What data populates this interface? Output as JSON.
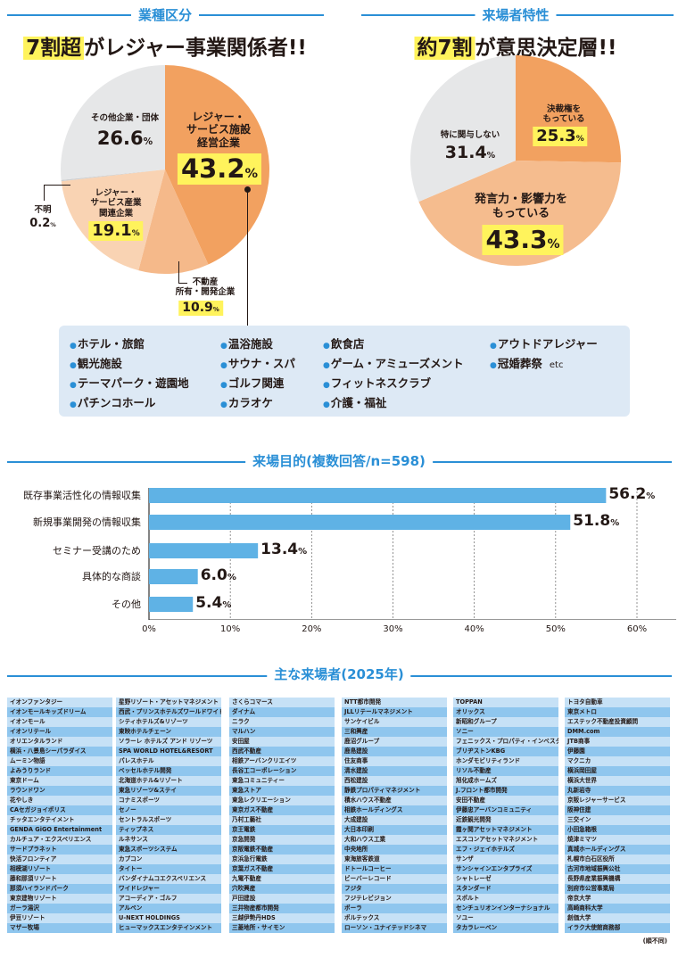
{
  "section1": {
    "title": "業種区分",
    "headline_highlight": "7割超",
    "headline_rest": "がレジャー事業関係者!!"
  },
  "section2": {
    "title": "来場者特性",
    "headline_highlight": "約7割",
    "headline_rest": "が意思決定層!!"
  },
  "legend": {
    "items": [
      "ホテル・旅館",
      "観光施設",
      "テーマパーク・遊園地",
      "パチンコホール",
      "温浴施設",
      "サウナ・スパ",
      "ゴルフ関連",
      "カラオケ",
      "飲食店",
      "ゲーム・アミューズメント",
      "フィットネスクラブ",
      "介護・福祉",
      "アウトドアレジャー",
      "冠婚葬祭"
    ],
    "etc": "etc"
  },
  "section3": {
    "title": "来場目的(複数回答/n=598)"
  },
  "section4": {
    "title": "主な来場者(2025年)",
    "note": "(順不同)"
  },
  "pct_unit": "%",
  "colors": {
    "accent": "#2a8fd6",
    "highlight": "#fff35c",
    "bar": "#5fb2e5"
  },
  "chart_data": [
    {
      "type": "pie",
      "title": "業種区分",
      "slices": [
        {
          "label_lines": [
            "レジャー・",
            "サービス施設",
            "経営企業"
          ],
          "value": 43.2,
          "value_text": "43.2",
          "color": "#f2a160"
        },
        {
          "label_lines": [
            "不動産",
            "所有・開発企業"
          ],
          "value": 10.9,
          "value_text": "10.9",
          "color": "#f5b98a"
        },
        {
          "label_lines": [
            "レジャー・",
            "サービス産業",
            "関連企業"
          ],
          "value": 19.1,
          "value_text": "19.1",
          "color": "#f9d3b3"
        },
        {
          "label_lines": [
            "不明"
          ],
          "value": 0.2,
          "value_text": "0.2",
          "color": "#cfd0d1"
        },
        {
          "label_lines": [
            "その他企業・団体"
          ],
          "value": 26.6,
          "value_text": "26.6",
          "color": "#e6e7e8"
        }
      ]
    },
    {
      "type": "pie",
      "title": "来場者特性",
      "slices": [
        {
          "label_lines": [
            "決裁権を",
            "もっている"
          ],
          "value": 25.3,
          "value_text": "25.3",
          "color": "#f2a160"
        },
        {
          "label_lines": [
            "発言力・影響力を",
            "もっている"
          ],
          "value": 43.3,
          "value_text": "43.3",
          "color": "#f5bc8e"
        },
        {
          "label_lines": [
            "特に関与しない"
          ],
          "value": 31.4,
          "value_text": "31.4",
          "color": "#e6e7e8"
        }
      ]
    },
    {
      "type": "bar",
      "orientation": "horizontal",
      "title": "来場目的(複数回答/n=598)",
      "categories": [
        "既存事業活性化の情報収集",
        "新規事業開発の情報収集",
        "セミナー受講のため",
        "具体的な商談",
        "その他"
      ],
      "values": [
        56.2,
        51.8,
        13.4,
        6.0,
        5.4
      ],
      "value_texts": [
        "56.2",
        "51.8",
        "13.4",
        "6.0",
        "5.4"
      ],
      "xlim": [
        0,
        60
      ],
      "xticks": [
        "0%",
        "10%",
        "20%",
        "30%",
        "40%",
        "50%",
        "60%"
      ],
      "grid": true
    }
  ],
  "visitors": {
    "columns": [
      [
        "イオンファンタジー",
        "イオンモールキッズドリーム",
        "イオンモール",
        "イオンリテール",
        "オリエンタルランド",
        "横浜・八景島シーパラダイス",
        "ムーミン物語",
        "よみうりランド",
        "東京ドーム",
        "ラウンドワン",
        "花やしき",
        "CAセガジョイポリス",
        "チッタエンタテイメント",
        "GENDA GiGO Entertainment",
        "カルチュア・エクスペリエンス",
        "サードプラネット",
        "快活フロンティア",
        "相模湖リゾート",
        "藤和那須リゾート",
        "那須ハイランドパーク",
        "東京建物リゾート",
        "ガーラ湯沢",
        "伊豆リゾート",
        "マザー牧場"
      ],
      [
        "星野リゾート・アセットマネジメント",
        "西武・プリンスホテルズワールドワイド",
        "シティホテルズ&リゾーツ",
        "東映ホテルチェーン",
        "ソラーレ ホテルズ アンド リゾーツ",
        "SPA WORLD HOTEL&RESORT",
        "パレスホテル",
        "ベッセルホテル開発",
        "北海道ホテル&リゾート",
        "東急リゾーツ&ステイ",
        "コナミスポーツ",
        "セノー",
        "セントラルスポーツ",
        "ティップネス",
        "ルネサンス",
        "東急スポーツシステム",
        "カプコン",
        "タイトー",
        "バンダイナムコエクスペリエンス",
        "ワイドレジャー",
        "アコーディア・ゴルフ",
        "アルペン",
        "U-NEXT HOLDINGS",
        "ヒューマックスエンタテインメント"
      ],
      [
        "さくらコマース",
        "ダイナム",
        "ニラク",
        "マルハン",
        "安田屋",
        "西武不動産",
        "相鉄アーバンクリエイツ",
        "長谷工コーポレーション",
        "東急コミュニティー",
        "東急ストア",
        "東急レクリエーション",
        "東京ガス不動産",
        "乃村工藝社",
        "京王電鉄",
        "京急開発",
        "京阪電鉄不動産",
        "京浜急行電鉄",
        "京葉ガス不動産",
        "九電不動産",
        "穴吹興産",
        "戸田建設",
        "三井物産都市開発",
        "三越伊勢丹HDS",
        "三菱地所・サイモン"
      ],
      [
        "NTT都市開発",
        "JLLリテールマネジメント",
        "サンケイビル",
        "三和興産",
        "鹿沼グループ",
        "鹿島建設",
        "住友商事",
        "清水建設",
        "西松建設",
        "静鉄プロパティマネジメント",
        "積水ハウス不動産",
        "相鉄ホールディングス",
        "大成建設",
        "大日本印刷",
        "大和ハウス工業",
        "中央地所",
        "東海旅客鉄道",
        "ドトールコーヒー",
        "ビーバーレコード",
        "フジタ",
        "フジテレビジョン",
        "ポーラ",
        "ポルテックス",
        "ローソン・ユナイテッドシネマ"
      ],
      [
        "TOPPAN",
        "オリックス",
        "新昭和グループ",
        "ソニー",
        "フェニックス・プロパティ・インベスターズ",
        "ブリヂストンKBG",
        "ホンダモビリティランド",
        "リソル不動産",
        "旭化成ホームズ",
        "J.フロント都市開発",
        "安田不動産",
        "伊藤忠アーバンコミュニティ",
        "近鉄観光開発",
        "霞ヶ関アセットマネジメント",
        "エスコンアセットマネジメント",
        "エフ・ジェイホテルズ",
        "サンザ",
        "サンシャインエンタプライズ",
        "シャトレーゼ",
        "スタンダード",
        "スポルト",
        "センチュリオンインターナショナル",
        "ソユー",
        "タカラレーベン"
      ],
      [
        "トヨタ自動車",
        "東京メトロ",
        "エステック不動産投資顧問",
        "DMM.com",
        "JTB商事",
        "伊藤園",
        "マクニカ",
        "横浜岡田屋",
        "横浜大世界",
        "丸新岩寺",
        "京阪レジャーサービス",
        "阪神住建",
        "三交イン",
        "小田急箱根",
        "焼津ミマツ",
        "真城ホールディングス",
        "札幌市白石区役所",
        "古河市地域振興公社",
        "長野県産業振興機構",
        "別府市公営事業局",
        "帝京大学",
        "高崎商科大学",
        "創価大学",
        "イラク大使館商務部"
      ]
    ]
  }
}
